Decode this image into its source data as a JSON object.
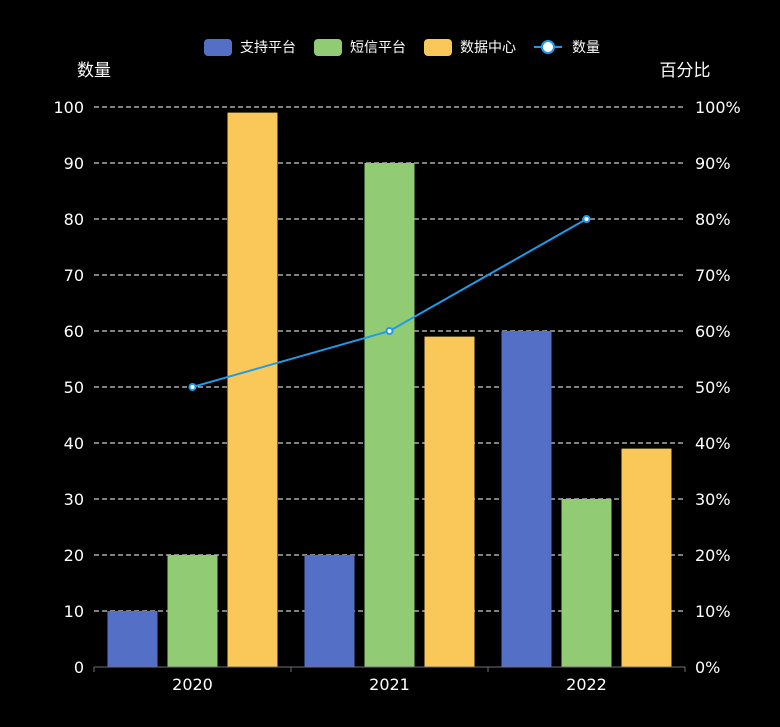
{
  "chart_data": {
    "type": "bar",
    "categories": [
      "2020",
      "2021",
      "2022"
    ],
    "series": [
      {
        "name": "支持平台",
        "type": "bar",
        "values": [
          10,
          20,
          60
        ],
        "color": "#5470c6"
      },
      {
        "name": "短信平台",
        "type": "bar",
        "values": [
          20,
          90,
          30
        ],
        "color": "#91cc75"
      },
      {
        "name": "数据中心",
        "type": "bar",
        "values": [
          99,
          59,
          39
        ],
        "color": "#fac858"
      },
      {
        "name": "数量",
        "type": "line",
        "axis": "right",
        "values": [
          50,
          60,
          80
        ],
        "color": "#1e9be8"
      }
    ],
    "ylabel": "数量",
    "ylabel_right": "百分比",
    "ylim": [
      0,
      100
    ],
    "ylim_right": [
      0,
      100
    ],
    "yticks": [
      "0",
      "10",
      "20",
      "30",
      "40",
      "50",
      "60",
      "70",
      "80",
      "90",
      "100"
    ],
    "yticks_right": [
      "0%",
      "10%",
      "20%",
      "30%",
      "40%",
      "50%",
      "60%",
      "70%",
      "80%",
      "90%",
      "100%"
    ],
    "grid": true,
    "legend_position": "top-center"
  }
}
